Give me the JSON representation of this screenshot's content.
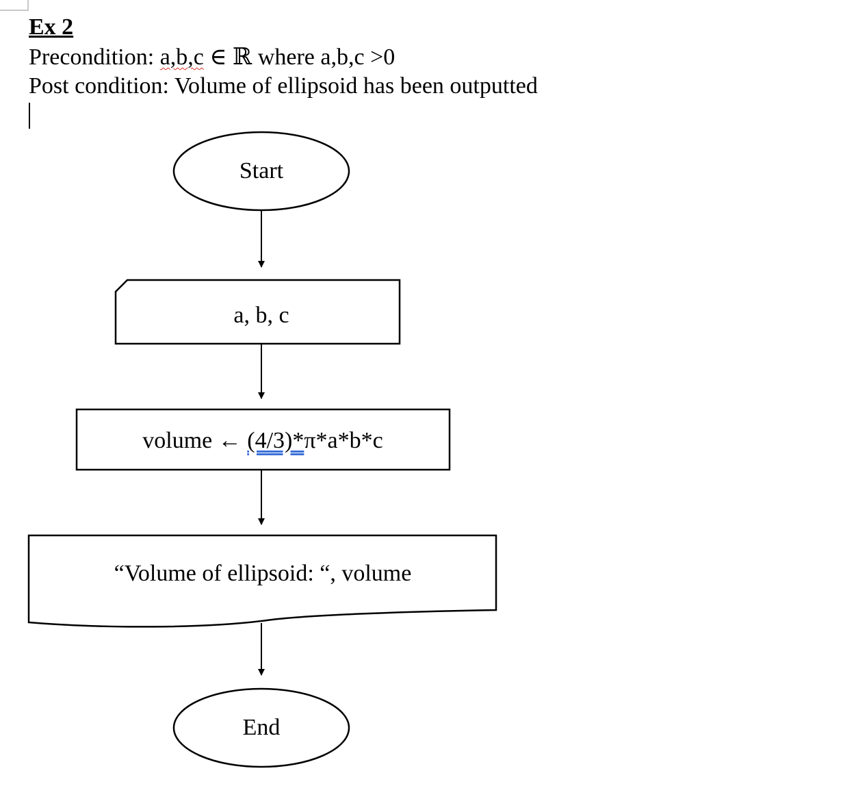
{
  "heading": "Ex 2",
  "precondition": {
    "label": "Precondition:",
    "vars": "a,b,c",
    "member": "∈ ℝ",
    "clause": "where a,b,c >0"
  },
  "postcondition": "Post condition: Volume of ellipsoid has been outputted",
  "flowchart": {
    "start": "Start",
    "input": "a, b, c",
    "process": {
      "lhs": "volume",
      "arrow": "←",
      "fraction": "(4/3)*",
      "rest": "π*a*b*c"
    },
    "output": "“Volume of ellipsoid: “, volume",
    "end": "End"
  }
}
